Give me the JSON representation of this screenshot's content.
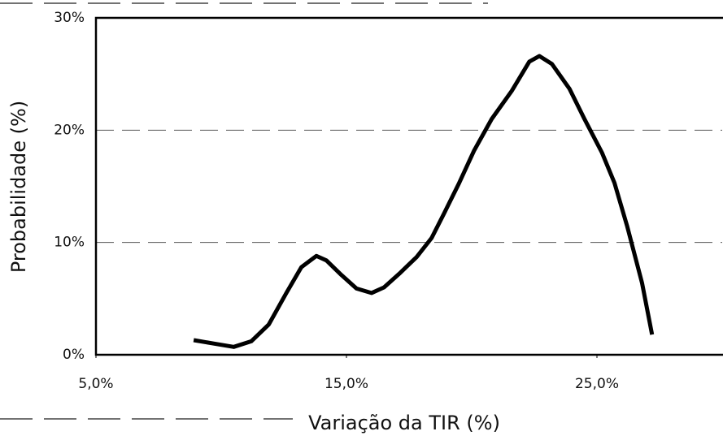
{
  "chart_data": {
    "type": "line",
    "xlabel": "Variação da TIR (%)",
    "ylabel": "Probabilidade (%)",
    "series": [
      {
        "color": "#000000",
        "x": [
          8.9,
          9.7,
          10.5,
          11.2,
          11.9,
          12.6,
          13.2,
          13.8,
          14.2,
          14.8,
          15.4,
          16.0,
          16.5,
          17.1,
          17.8,
          18.4,
          18.9,
          19.5,
          20.1,
          20.8,
          21.6,
          22.3,
          22.7,
          23.2,
          23.9,
          24.5,
          25.2,
          25.7,
          26.2,
          26.8,
          27.2
        ],
        "values": [
          1.3,
          1.0,
          0.7,
          1.2,
          2.7,
          5.5,
          7.8,
          8.8,
          8.4,
          7.1,
          5.9,
          5.5,
          6.0,
          7.2,
          8.7,
          10.4,
          12.6,
          15.3,
          18.2,
          21.0,
          23.5,
          26.1,
          26.6,
          25.9,
          23.7,
          21.0,
          18.0,
          15.3,
          11.5,
          6.4,
          1.8
        ]
      }
    ],
    "xlim": [
      5,
      30
    ],
    "xticks": [
      {
        "value": 5,
        "label": "5,0%"
      },
      {
        "value": 15,
        "label": "15,0%"
      },
      {
        "value": 25,
        "label": "25,0%"
      }
    ],
    "ylim": [
      0,
      30
    ],
    "yticks": [
      {
        "value": 0,
        "label": "0%"
      },
      {
        "value": 10,
        "label": "10%"
      },
      {
        "value": 20,
        "label": "20%"
      },
      {
        "value": 30,
        "label": "30%"
      }
    ],
    "grid": true
  }
}
